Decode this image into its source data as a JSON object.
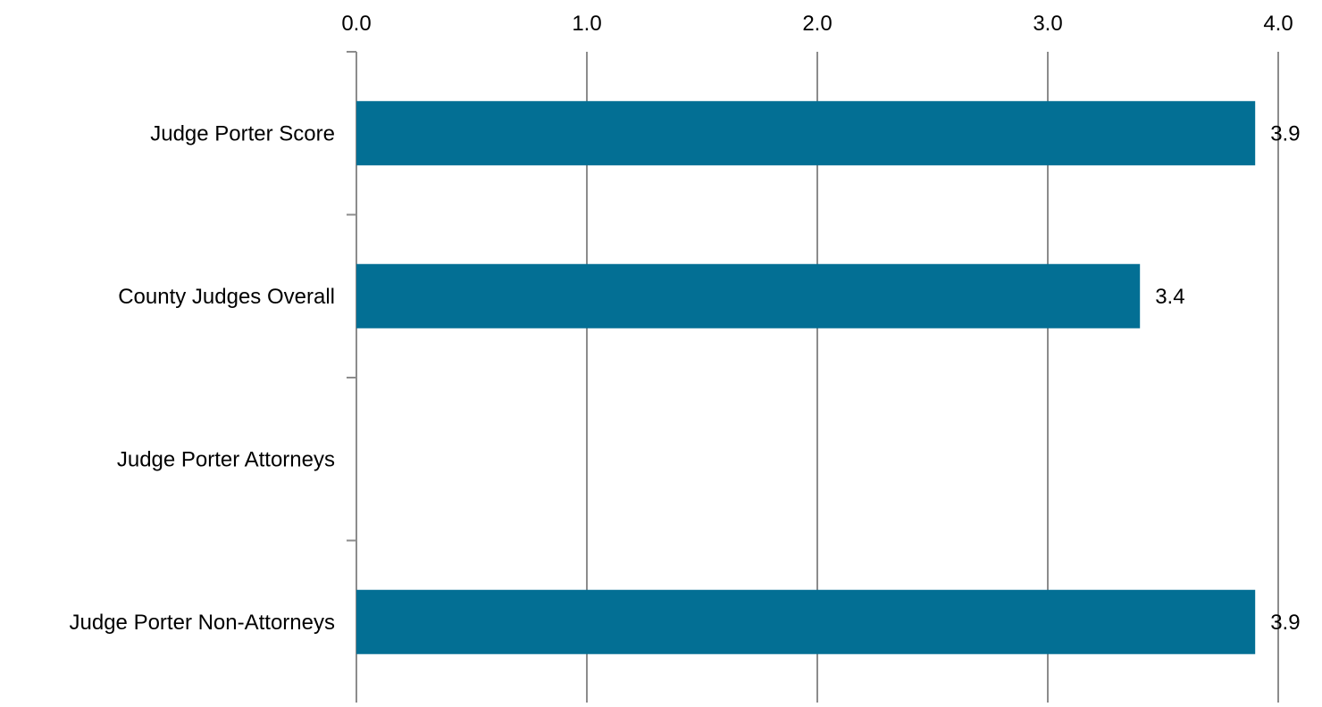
{
  "chart_data": {
    "type": "bar",
    "orientation": "horizontal",
    "categories": [
      "Judge Porter Score",
      "County Judges Overall",
      "Judge Porter Attorneys",
      "Judge Porter Non-Attorneys"
    ],
    "values": [
      3.9,
      3.4,
      null,
      3.9
    ],
    "value_labels": [
      "3.9",
      "3.4",
      "",
      "3.9"
    ],
    "x_ticks": [
      "0.0",
      "1.0",
      "2.0",
      "3.0",
      "4.0"
    ],
    "xlim": [
      0,
      4
    ],
    "x_axis_position": "top",
    "grid": true,
    "bar_color": "#036f94",
    "grid_color": "#8c8c8c"
  }
}
